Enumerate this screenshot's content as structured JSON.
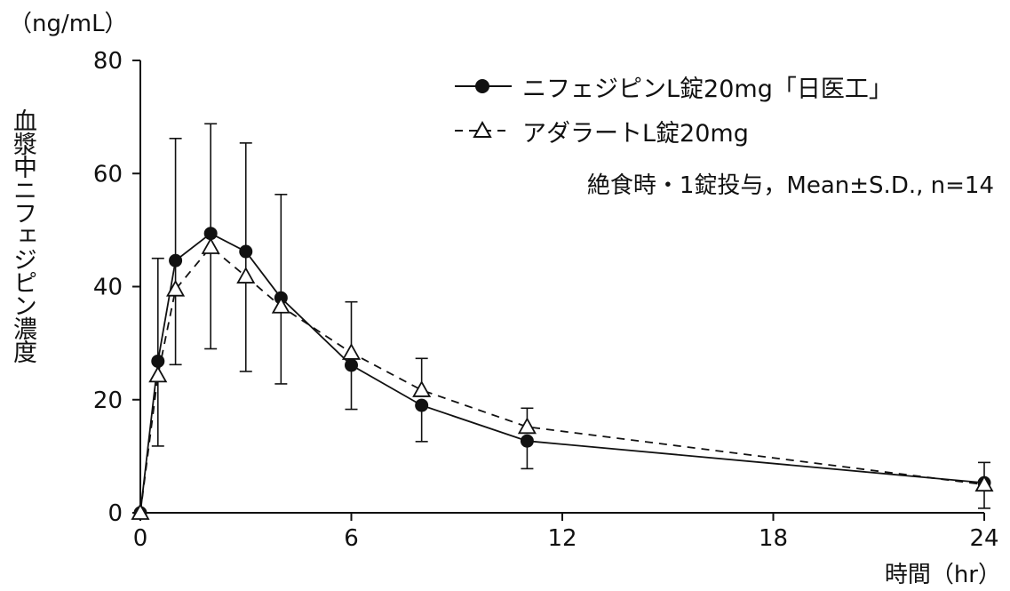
{
  "chart_data": {
    "type": "line",
    "unit_label": "（ng/mL）",
    "ylabel": "血漿中ニフェジピン濃度",
    "xlabel": "時間（hr）",
    "xlim": [
      0,
      24
    ],
    "ylim": [
      0,
      80
    ],
    "x_ticks": [
      0,
      6,
      12,
      18,
      24
    ],
    "y_ticks": [
      0,
      20,
      40,
      60,
      80
    ],
    "x_tick_labels": [
      "0",
      "6",
      "12",
      "18",
      "24"
    ],
    "y_tick_labels": [
      "0",
      "20",
      "40",
      "60",
      "80"
    ],
    "grid": false,
    "legend_position": "top-right",
    "note": "絶食時・1錠投与，Mean±S.D., n=14",
    "series": [
      {
        "name": "ニフェジピンL錠20mg「日医工」",
        "marker": "filled-circle",
        "line_style": "solid",
        "x": [
          0,
          0.5,
          1,
          2,
          3,
          4,
          6,
          8,
          11,
          24
        ],
        "y": [
          0,
          26.8,
          44.6,
          49.4,
          46.2,
          38.0,
          26.1,
          19.0,
          12.7,
          5.3
        ],
        "sd_upper": [
          0,
          45.0,
          66.2,
          68.8,
          65.4,
          56.3,
          null,
          null,
          null,
          null
        ],
        "sd_lower": [
          0,
          11.8,
          26.2,
          29.0,
          25.0,
          22.8,
          18.3,
          12.6,
          7.8,
          0.8
        ]
      },
      {
        "name": "アダラートL錠20mg",
        "marker": "open-triangle",
        "line_style": "dashed",
        "x": [
          0,
          0.5,
          1,
          2,
          3,
          4,
          6,
          8,
          11,
          24
        ],
        "y": [
          0,
          24.3,
          39.5,
          47.0,
          41.8,
          36.5,
          28.3,
          21.7,
          15.2,
          5.0
        ],
        "sd_upper": [
          null,
          null,
          null,
          null,
          null,
          null,
          37.3,
          27.3,
          18.5,
          8.9
        ],
        "sd_lower": [
          null,
          null,
          null,
          null,
          null,
          null,
          null,
          null,
          null,
          null
        ]
      }
    ]
  },
  "colors": {
    "line": "#111111",
    "background": "#ffffff"
  }
}
